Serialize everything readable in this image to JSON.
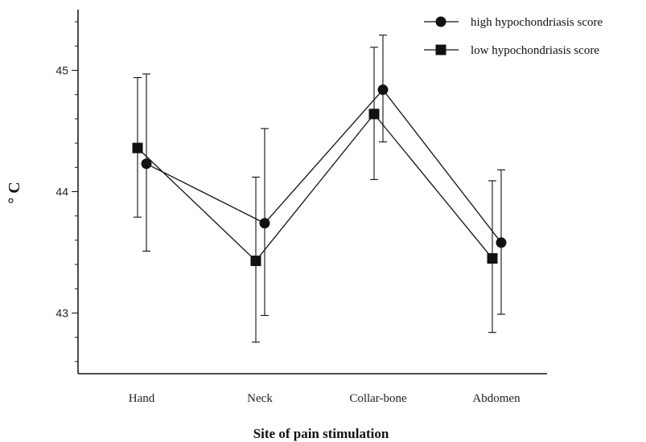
{
  "chart_data": {
    "type": "line",
    "categories": [
      "Hand",
      "Neck",
      "Collar-bone",
      "Abdomen"
    ],
    "xlabel": "Site of pain stimulation",
    "ylabel": "° C",
    "ylim": [
      42.5,
      45.5
    ],
    "yticks": [
      43,
      44,
      45
    ],
    "grid": false,
    "legend_placement": "top-right",
    "series": [
      {
        "name": "high hypochondriasis score",
        "marker": "circle",
        "values": [
          44.23,
          43.74,
          44.84,
          43.58
        ],
        "err_low": [
          43.51,
          42.98,
          44.41,
          42.99
        ],
        "err_high": [
          44.97,
          44.52,
          45.29,
          44.18
        ]
      },
      {
        "name": "low hypochondriasis score",
        "marker": "square",
        "values": [
          44.36,
          43.43,
          44.64,
          43.45
        ],
        "err_low": [
          43.79,
          42.76,
          44.1,
          42.84
        ],
        "err_high": [
          44.94,
          44.12,
          45.19,
          44.09
        ]
      }
    ]
  }
}
